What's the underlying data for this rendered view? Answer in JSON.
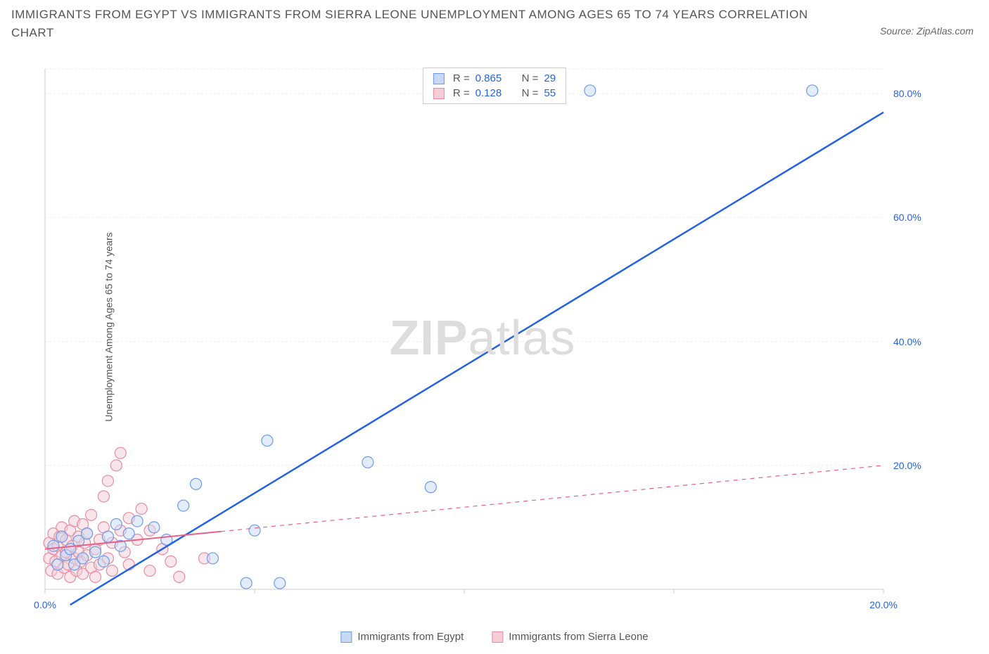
{
  "title": "IMMIGRANTS FROM EGYPT VS IMMIGRANTS FROM SIERRA LEONE UNEMPLOYMENT AMONG AGES 65 TO 74 YEARS CORRELATION CHART",
  "source": "Source: ZipAtlas.com",
  "y_axis_label": "Unemployment Among Ages 65 to 74 years",
  "watermark_bold": "ZIP",
  "watermark_rest": "atlas",
  "chart": {
    "type": "scatter",
    "xlim": [
      0,
      20
    ],
    "ylim": [
      0,
      84
    ],
    "x_ticks": [
      0,
      5,
      10,
      15,
      20
    ],
    "x_tick_labels": [
      "0.0%",
      "",
      "",
      "",
      "20.0%"
    ],
    "y_ticks": [
      20,
      40,
      60,
      80
    ],
    "y_tick_labels": [
      "20.0%",
      "40.0%",
      "60.0%",
      "80.0%"
    ],
    "background_color": "#ffffff",
    "grid_color": "#eeeeee",
    "axis_color": "#cccccc",
    "marker_radius": 8,
    "marker_stroke_width": 1.2,
    "marker_fill_opacity": 0.25,
    "series": [
      {
        "name": "Immigrants from Egypt",
        "key": "egypt",
        "color": "#6f9ae8",
        "fill": "#c7d9f5",
        "line_color": "#2462e6",
        "r_value": "0.865",
        "n_value": "29",
        "trend": {
          "x1": 0.6,
          "y1": -2.5,
          "x2": 20,
          "y2": 77,
          "dash": false
        },
        "points": [
          {
            "x": 0.2,
            "y": 7.0
          },
          {
            "x": 0.3,
            "y": 4.0
          },
          {
            "x": 0.4,
            "y": 8.5
          },
          {
            "x": 0.5,
            "y": 5.5
          },
          {
            "x": 0.6,
            "y": 6.5
          },
          {
            "x": 0.7,
            "y": 4.0
          },
          {
            "x": 0.8,
            "y": 7.8
          },
          {
            "x": 0.9,
            "y": 5.0
          },
          {
            "x": 1.0,
            "y": 9.0
          },
          {
            "x": 1.2,
            "y": 6.0
          },
          {
            "x": 1.4,
            "y": 4.5
          },
          {
            "x": 1.5,
            "y": 8.5
          },
          {
            "x": 1.7,
            "y": 10.5
          },
          {
            "x": 1.8,
            "y": 7.0
          },
          {
            "x": 2.0,
            "y": 9.0
          },
          {
            "x": 2.2,
            "y": 11.0
          },
          {
            "x": 2.6,
            "y": 10.0
          },
          {
            "x": 2.9,
            "y": 8.0
          },
          {
            "x": 3.3,
            "y": 13.5
          },
          {
            "x": 3.6,
            "y": 17.0
          },
          {
            "x": 4.0,
            "y": 5.0
          },
          {
            "x": 4.8,
            "y": 1.0
          },
          {
            "x": 5.0,
            "y": 9.5
          },
          {
            "x": 5.3,
            "y": 24.0
          },
          {
            "x": 5.6,
            "y": 1.0
          },
          {
            "x": 7.7,
            "y": 20.5
          },
          {
            "x": 9.2,
            "y": 16.5
          },
          {
            "x": 13.0,
            "y": 80.5
          },
          {
            "x": 18.3,
            "y": 80.5
          }
        ]
      },
      {
        "name": "Immigrants from Sierra Leone",
        "key": "sierra",
        "color": "#e88ba2",
        "fill": "#f4cdd6",
        "line_color": "#e95f86",
        "r_value": "0.128",
        "n_value": "55",
        "trend": {
          "x1": 0,
          "y1": 6.5,
          "x2": 20,
          "y2": 20,
          "dash": true,
          "solid_until": 4.2
        },
        "points": [
          {
            "x": 0.1,
            "y": 5.0
          },
          {
            "x": 0.1,
            "y": 7.5
          },
          {
            "x": 0.15,
            "y": 3.0
          },
          {
            "x": 0.2,
            "y": 6.5
          },
          {
            "x": 0.2,
            "y": 9.0
          },
          {
            "x": 0.25,
            "y": 4.5
          },
          {
            "x": 0.3,
            "y": 7.0
          },
          {
            "x": 0.3,
            "y": 2.5
          },
          {
            "x": 0.35,
            "y": 8.5
          },
          {
            "x": 0.4,
            "y": 5.5
          },
          {
            "x": 0.4,
            "y": 10.0
          },
          {
            "x": 0.45,
            "y": 3.5
          },
          {
            "x": 0.5,
            "y": 6.0
          },
          {
            "x": 0.5,
            "y": 8.0
          },
          {
            "x": 0.55,
            "y": 4.0
          },
          {
            "x": 0.6,
            "y": 9.5
          },
          {
            "x": 0.6,
            "y": 2.0
          },
          {
            "x": 0.65,
            "y": 7.0
          },
          {
            "x": 0.7,
            "y": 5.0
          },
          {
            "x": 0.7,
            "y": 11.0
          },
          {
            "x": 0.75,
            "y": 3.0
          },
          {
            "x": 0.8,
            "y": 8.5
          },
          {
            "x": 0.8,
            "y": 6.0
          },
          {
            "x": 0.85,
            "y": 4.5
          },
          {
            "x": 0.9,
            "y": 10.5
          },
          {
            "x": 0.9,
            "y": 2.5
          },
          {
            "x": 0.95,
            "y": 7.5
          },
          {
            "x": 1.0,
            "y": 5.5
          },
          {
            "x": 1.0,
            "y": 9.0
          },
          {
            "x": 1.1,
            "y": 3.5
          },
          {
            "x": 1.1,
            "y": 12.0
          },
          {
            "x": 1.2,
            "y": 6.5
          },
          {
            "x": 1.2,
            "y": 2.0
          },
          {
            "x": 1.3,
            "y": 8.0
          },
          {
            "x": 1.3,
            "y": 4.0
          },
          {
            "x": 1.4,
            "y": 15.0
          },
          {
            "x": 1.4,
            "y": 10.0
          },
          {
            "x": 1.5,
            "y": 5.0
          },
          {
            "x": 1.5,
            "y": 17.5
          },
          {
            "x": 1.6,
            "y": 7.5
          },
          {
            "x": 1.6,
            "y": 3.0
          },
          {
            "x": 1.7,
            "y": 20.0
          },
          {
            "x": 1.8,
            "y": 22.0
          },
          {
            "x": 1.8,
            "y": 9.5
          },
          {
            "x": 1.9,
            "y": 6.0
          },
          {
            "x": 2.0,
            "y": 11.5
          },
          {
            "x": 2.0,
            "y": 4.0
          },
          {
            "x": 2.2,
            "y": 8.0
          },
          {
            "x": 2.3,
            "y": 13.0
          },
          {
            "x": 2.5,
            "y": 3.0
          },
          {
            "x": 2.5,
            "y": 9.5
          },
          {
            "x": 2.8,
            "y": 6.5
          },
          {
            "x": 3.0,
            "y": 4.5
          },
          {
            "x": 3.2,
            "y": 2.0
          },
          {
            "x": 3.8,
            "y": 5.0
          }
        ]
      }
    ]
  },
  "legend_box": {
    "r_label": "R =",
    "n_label": "N ="
  }
}
